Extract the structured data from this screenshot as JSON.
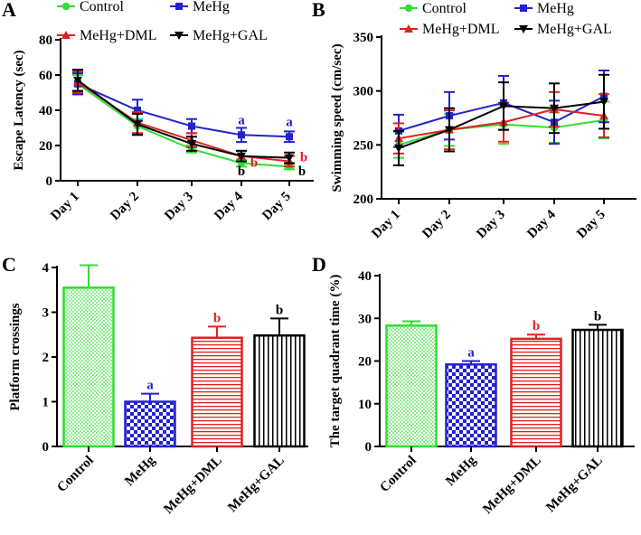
{
  "colors": {
    "control": "#33dd33",
    "mehg": "#2222cc",
    "dml": "#dd2222",
    "gal": "#000000"
  },
  "chart_data": [
    {
      "panel": "A",
      "type": "line",
      "title": "",
      "xlabel": "",
      "ylabel": "Escape Latency (sec)",
      "categories": [
        "Day 1",
        "Day 2",
        "Day 3",
        "Day 4",
        "Day 5"
      ],
      "ylim": [
        0,
        80
      ],
      "yticks": [
        0,
        20,
        40,
        60,
        80
      ],
      "legend": [
        "Control",
        "MeHg",
        "MeHg+DML",
        "MeHg+GAL"
      ],
      "series": [
        {
          "name": "Control",
          "color": "#33dd33",
          "marker": "circle",
          "values": [
            55,
            31,
            18,
            10,
            8
          ],
          "err": [
            5,
            4,
            2,
            2,
            1.5
          ]
        },
        {
          "name": "MeHg",
          "color": "#2222cc",
          "marker": "square",
          "values": [
            55,
            40,
            31,
            26,
            25
          ],
          "err": [
            6,
            6,
            4,
            4,
            3
          ]
        },
        {
          "name": "MeHg+DML",
          "color": "#dd2222",
          "marker": "triangle",
          "values": [
            56,
            33,
            23,
            14,
            11
          ],
          "err": [
            6,
            6,
            4,
            3,
            3
          ]
        },
        {
          "name": "MeHg+GAL",
          "color": "#000000",
          "marker": "tridown",
          "values": [
            57,
            32,
            21,
            14,
            13
          ],
          "err": [
            6,
            6,
            4,
            3,
            3
          ]
        }
      ],
      "annotations": [
        {
          "text": "a",
          "color": "#2222cc",
          "xi": 3,
          "y": 32
        },
        {
          "text": "a",
          "color": "#2222cc",
          "xi": 4,
          "y": 31
        },
        {
          "text": "b",
          "color": "#dd2222",
          "xi": 3,
          "y": 8,
          "dx": 14
        },
        {
          "text": "b",
          "color": "#dd2222",
          "xi": 4,
          "y": 11,
          "dx": 16
        },
        {
          "text": "b",
          "color": "#000000",
          "xi": 3,
          "y": 3
        },
        {
          "text": "b",
          "color": "#000000",
          "xi": 4,
          "y": 3,
          "dx": 14
        }
      ]
    },
    {
      "panel": "B",
      "type": "line",
      "title": "",
      "xlabel": "",
      "ylabel": "Swimming speed (cm/sec)",
      "categories": [
        "Day 1",
        "Day 2",
        "Day 3",
        "Day 4",
        "Day 5"
      ],
      "ylim": [
        200,
        350
      ],
      "yticks": [
        200,
        250,
        300,
        350
      ],
      "legend": [
        "Control",
        "MeHg",
        "MeHg+DML",
        "MeHg+GAL"
      ],
      "series": [
        {
          "name": "Control",
          "color": "#33dd33",
          "marker": "circle",
          "values": [
            250,
            264,
            269,
            266,
            273
          ],
          "err": [
            12,
            15,
            18,
            14,
            17
          ]
        },
        {
          "name": "MeHg",
          "color": "#2222cc",
          "marker": "square",
          "values": [
            263,
            277,
            289,
            271,
            295
          ],
          "err": [
            15,
            22,
            25,
            20,
            24
          ]
        },
        {
          "name": "MeHg+DML",
          "color": "#dd2222",
          "marker": "triangle",
          "values": [
            256,
            264,
            271,
            283,
            277
          ],
          "err": [
            14,
            18,
            18,
            16,
            20
          ]
        },
        {
          "name": "MeHg+GAL",
          "color": "#000000",
          "marker": "tridown",
          "values": [
            247,
            264,
            286,
            284,
            290
          ],
          "err": [
            16,
            20,
            22,
            23,
            25
          ]
        }
      ]
    },
    {
      "panel": "C",
      "type": "bar",
      "title": "",
      "xlabel": "",
      "ylabel": "Platform crossings",
      "categories": [
        "Control",
        "MeHg",
        "MeHg+DML",
        "MeHg+GAL"
      ],
      "values": [
        3.55,
        1.0,
        2.43,
        2.48
      ],
      "err": [
        0.5,
        0.18,
        0.25,
        0.38
      ],
      "ylim": [
        0,
        4
      ],
      "yticks": [
        0,
        1,
        2,
        3,
        4
      ],
      "annotations": [
        {
          "text": "a",
          "color": "#2222cc",
          "i": 1
        },
        {
          "text": "b",
          "color": "#dd2222",
          "i": 2
        },
        {
          "text": "b",
          "color": "#000000",
          "i": 3
        }
      ]
    },
    {
      "panel": "D",
      "type": "bar",
      "title": "",
      "xlabel": "",
      "ylabel": "The target quadrant time (%)",
      "categories": [
        "Control",
        "MeHg",
        "MeHg+DML",
        "MeHg+GAL"
      ],
      "values": [
        28.3,
        19.2,
        25.2,
        27.3
      ],
      "err": [
        1.0,
        0.8,
        1.0,
        1.2
      ],
      "ylim": [
        0,
        40
      ],
      "yticks": [
        0,
        10,
        20,
        30,
        40
      ],
      "annotations": [
        {
          "text": "a",
          "color": "#2222cc",
          "i": 1
        },
        {
          "text": "b",
          "color": "#dd2222",
          "i": 2
        },
        {
          "text": "b",
          "color": "#000000",
          "i": 3
        }
      ]
    }
  ]
}
